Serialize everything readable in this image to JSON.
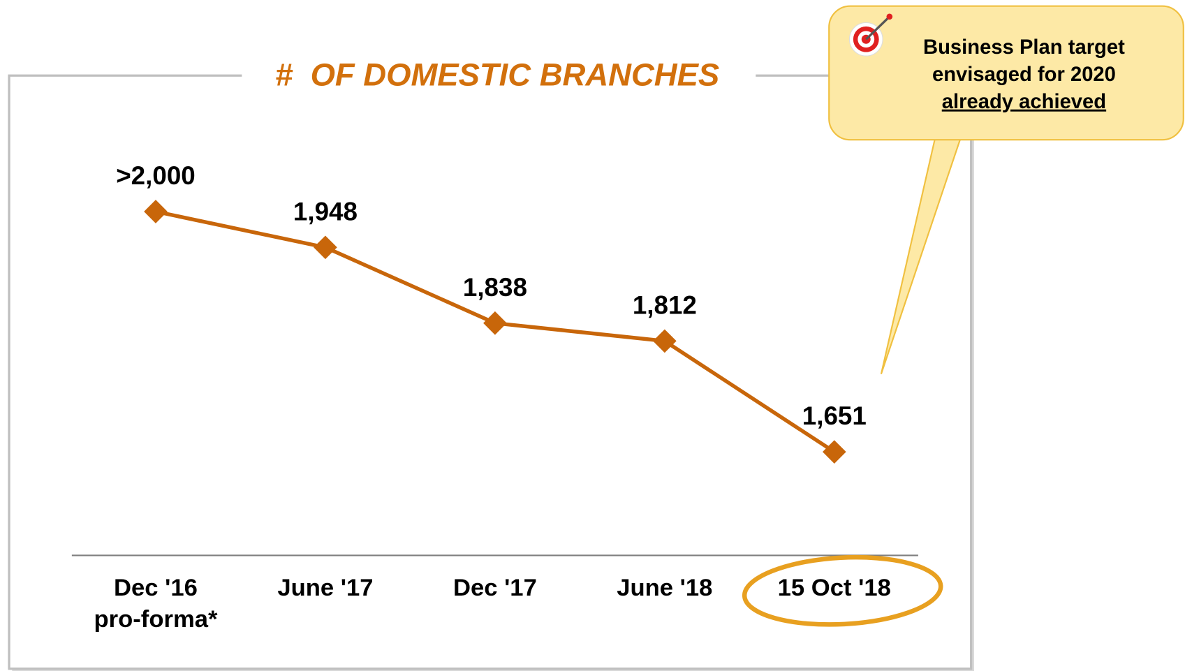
{
  "chart_data": {
    "type": "line",
    "title": "#  OF DOMESTIC BRANCHES",
    "categories": [
      "Dec '16\npro-forma*",
      "June '17",
      "Dec '17",
      "June '18",
      "15 Oct '18"
    ],
    "series": [
      {
        "color": "#c8660a",
        "values": [
          2000,
          1948,
          1838,
          1812,
          1651
        ],
        "value_labels": [
          ">2,000",
          "1,948",
          "1,838",
          "1,812",
          "1,651"
        ]
      }
    ],
    "annotations": [
      "Business Plan target",
      "envisaged for 2020",
      "already achieved"
    ]
  }
}
